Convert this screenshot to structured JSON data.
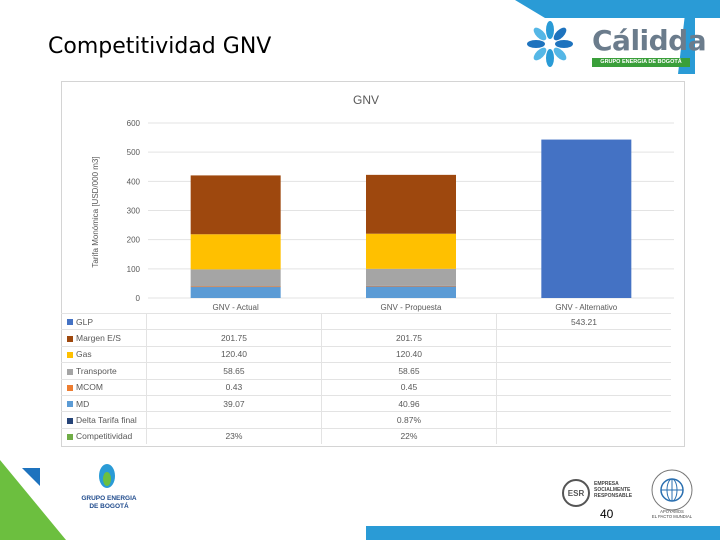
{
  "slide": {
    "title": "Competitividad GNV",
    "page_number": "40"
  },
  "logos": {
    "calidda_word": "Cálidda",
    "calidda_tag": "GRUPO ENERGIA DE BOGOTÁ",
    "geb_text": "GRUPO ENERGIA\nDE BOGOTÁ",
    "esr_text": "EMPRESA\nSOCIALMENTE\nRESPONSABLE",
    "esr_badge": "ESR",
    "un_text": "APOYAMOS\nEL PACTO MUNDIAL",
    "un_ring": "RED PACTO GLOBAL"
  },
  "colors": {
    "GLP": "#4472C4",
    "Margen E/S": "#9E480E",
    "Gas": "#FFC000",
    "Transporte": "#A5A5A5",
    "MCOM": "#ED7D31",
    "MD": "#5B9BD5",
    "Delta Tarifa final": "#264478",
    "Competitividad": "#70AD47",
    "band": "#2a9bd6",
    "green": "#3a9f3a"
  },
  "chart_data": {
    "type": "bar",
    "stacked": true,
    "title": "GNV",
    "ylabel": "Tarifa Monómica [USD/000 m3]",
    "xlabel": "",
    "ylim": [
      0,
      600
    ],
    "yticks": [
      0,
      100,
      200,
      300,
      400,
      500,
      600
    ],
    "ytick_labels": [
      "0",
      "100",
      "200",
      "300",
      "400",
      "500",
      "600"
    ],
    "categories": [
      "GNV - Actual",
      "GNV - Propuesta",
      "GNV - Alternativo"
    ],
    "series": [
      {
        "name": "GLP",
        "values": [
          null,
          null,
          543.21
        ],
        "display": [
          "",
          "",
          "543.21"
        ]
      },
      {
        "name": "Margen E/S",
        "values": [
          201.75,
          201.75,
          null
        ],
        "display": [
          "201.75",
          "201.75",
          ""
        ]
      },
      {
        "name": "Gas",
        "values": [
          120.4,
          120.4,
          null
        ],
        "display": [
          "120.40",
          "120.40",
          ""
        ]
      },
      {
        "name": "Transporte",
        "values": [
          58.65,
          58.65,
          null
        ],
        "display": [
          "58.65",
          "58.65",
          ""
        ]
      },
      {
        "name": "MCOM",
        "values": [
          0.43,
          0.45,
          null
        ],
        "display": [
          "0.43",
          "0.45",
          ""
        ]
      },
      {
        "name": "MD",
        "values": [
          39.07,
          40.96,
          null
        ],
        "display": [
          "39.07",
          "40.96",
          ""
        ]
      },
      {
        "name": "Delta Tarifa final",
        "values": [
          null,
          null,
          null
        ],
        "display": [
          "",
          "0.87%",
          ""
        ]
      },
      {
        "name": "Competitividad",
        "values": [
          null,
          null,
          null
        ],
        "display": [
          "23%",
          "22%",
          ""
        ]
      }
    ],
    "stack_order": [
      "MD",
      "MCOM",
      "Transporte",
      "Gas",
      "Margen E/S",
      "GLP"
    ],
    "grid": true,
    "legend": "table-below"
  }
}
